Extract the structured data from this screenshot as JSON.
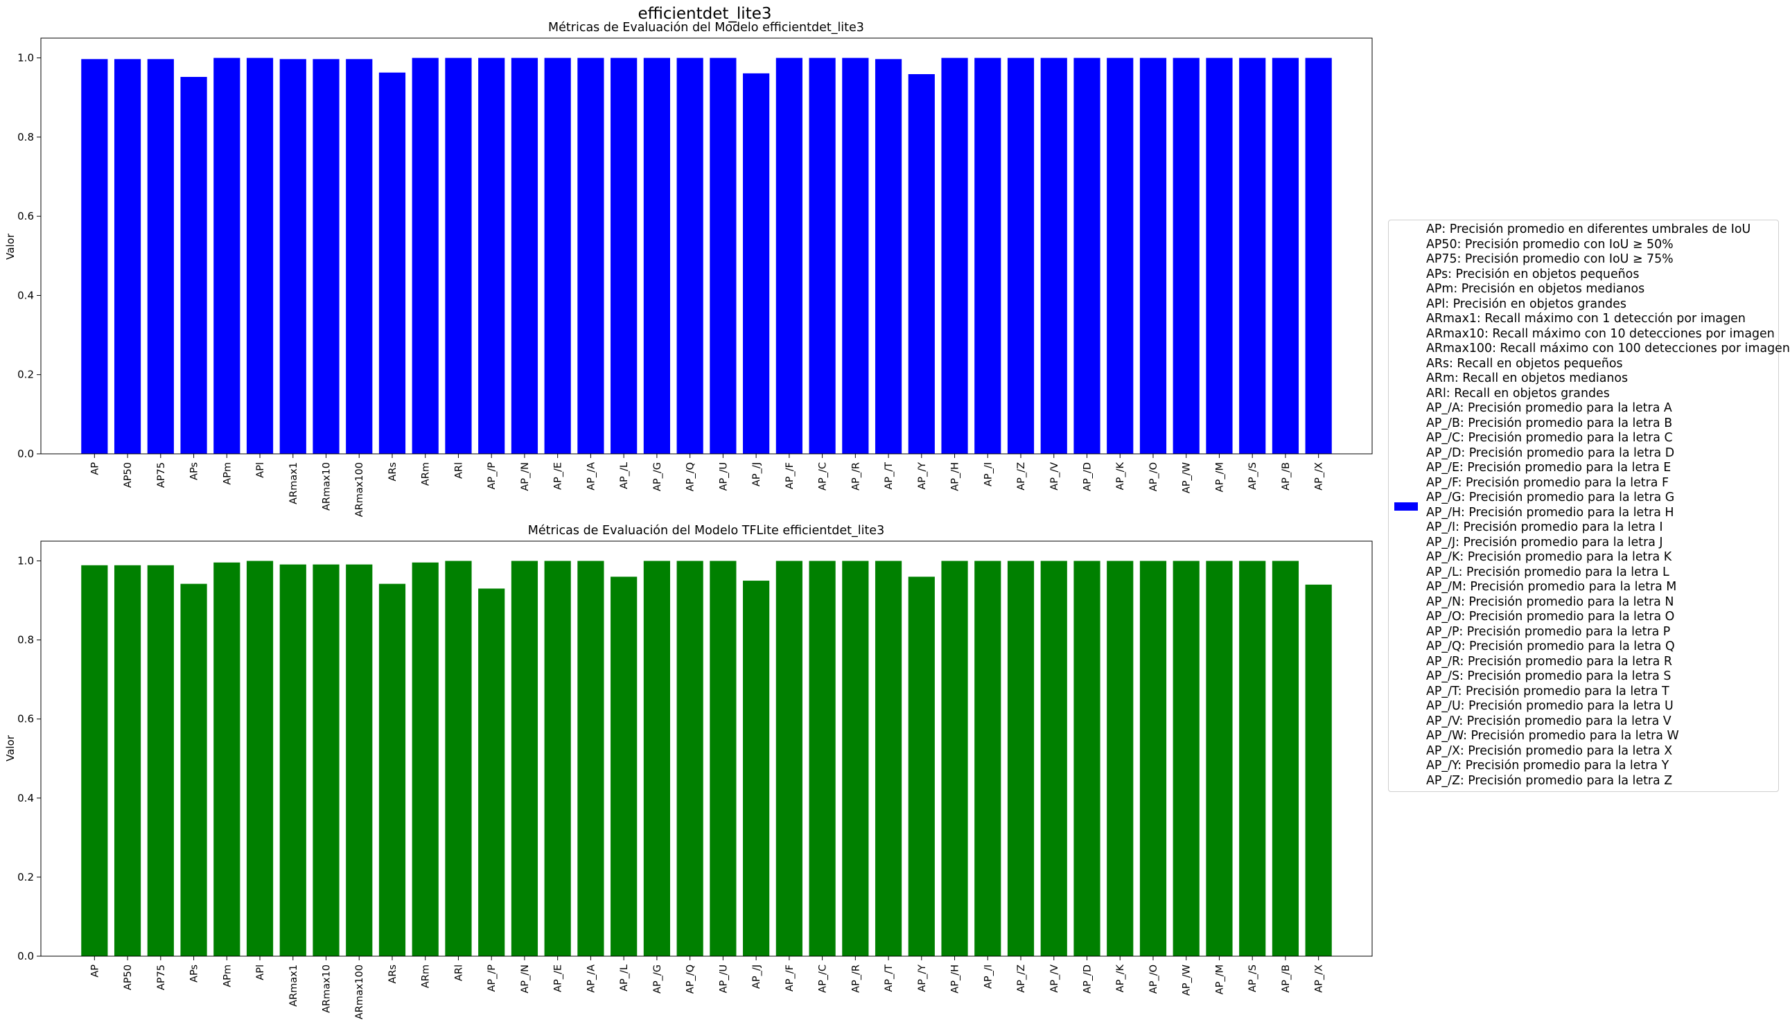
{
  "figure": {
    "suptitle": "efficientdet_lite3"
  },
  "chart_data": [
    {
      "type": "bar",
      "title": "Métricas de Evaluación del Modelo efficientdet_lite3",
      "xlabel": "",
      "ylabel": "Valor",
      "color": "#0000ff",
      "ylim": [
        0,
        1.05
      ],
      "yticks": [
        "0.0",
        "0.2",
        "0.4",
        "0.6",
        "0.8",
        "1.0"
      ],
      "grid": false,
      "categories": [
        "AP",
        "AP50",
        "AP75",
        "APs",
        "APm",
        "APl",
        "ARmax1",
        "ARmax10",
        "ARmax100",
        "ARs",
        "ARm",
        "ARl",
        "AP_/P",
        "AP_/N",
        "AP_/E",
        "AP_/A",
        "AP_/L",
        "AP_/G",
        "AP_/Q",
        "AP_/U",
        "AP_/J",
        "AP_/F",
        "AP_/C",
        "AP_/R",
        "AP_/T",
        "AP_/Y",
        "AP_/H",
        "AP_/I",
        "AP_/Z",
        "AP_/V",
        "AP_/D",
        "AP_/K",
        "AP_/O",
        "AP_/W",
        "AP_/M",
        "AP_/S",
        "AP_/B",
        "AP_/X"
      ],
      "values": [
        0.997,
        0.997,
        0.997,
        0.952,
        1.0,
        1.0,
        0.997,
        0.997,
        0.997,
        0.963,
        1.0,
        1.0,
        1.0,
        1.0,
        1.0,
        1.0,
        1.0,
        1.0,
        1.0,
        1.0,
        0.961,
        1.0,
        1.0,
        1.0,
        0.997,
        0.959,
        1.0,
        1.0,
        1.0,
        1.0,
        1.0,
        1.0,
        1.0,
        1.0,
        1.0,
        1.0,
        1.0,
        1.0
      ]
    },
    {
      "type": "bar",
      "title": "Métricas de Evaluación del Modelo TFLite efficientdet_lite3",
      "xlabel": "",
      "ylabel": "Valor",
      "color": "#008000",
      "ylim": [
        0,
        1.05
      ],
      "yticks": [
        "0.0",
        "0.2",
        "0.4",
        "0.6",
        "0.8",
        "1.0"
      ],
      "grid": false,
      "categories": [
        "AP",
        "AP50",
        "AP75",
        "APs",
        "APm",
        "APl",
        "ARmax1",
        "ARmax10",
        "ARmax100",
        "ARs",
        "ARm",
        "ARl",
        "AP_/P",
        "AP_/N",
        "AP_/E",
        "AP_/A",
        "AP_/L",
        "AP_/G",
        "AP_/Q",
        "AP_/U",
        "AP_/J",
        "AP_/F",
        "AP_/C",
        "AP_/R",
        "AP_/T",
        "AP_/Y",
        "AP_/H",
        "AP_/I",
        "AP_/Z",
        "AP_/V",
        "AP_/D",
        "AP_/K",
        "AP_/O",
        "AP_/W",
        "AP_/M",
        "AP_/S",
        "AP_/B",
        "AP_/X"
      ],
      "values": [
        0.989,
        0.989,
        0.989,
        0.942,
        0.996,
        1.0,
        0.991,
        0.991,
        0.991,
        0.942,
        0.996,
        1.0,
        0.93,
        1.0,
        1.0,
        1.0,
        0.96,
        1.0,
        1.0,
        1.0,
        0.95,
        1.0,
        1.0,
        1.0,
        1.0,
        0.96,
        1.0,
        1.0,
        1.0,
        1.0,
        1.0,
        1.0,
        1.0,
        1.0,
        1.0,
        1.0,
        1.0,
        0.94
      ]
    }
  ],
  "legend": {
    "placement": "center-right",
    "swatch_color": "#0000ff",
    "lines": [
      "AP: Precisión promedio en diferentes umbrales de IoU",
      "AP50: Precisión promedio con IoU ≥ 50%",
      "AP75: Precisión promedio con IoU ≥ 75%",
      "APs: Precisión en objetos pequeños",
      "APm: Precisión en objetos medianos",
      "APl: Precisión en objetos grandes",
      "ARmax1: Recall máximo con 1 detección por imagen",
      "ARmax10: Recall máximo con 10 detecciones por imagen",
      "ARmax100: Recall máximo con 100 detecciones por imagen",
      "ARs: Recall en objetos pequeños",
      "ARm: Recall en objetos medianos",
      "ARl: Recall en objetos grandes",
      "AP_/A: Precisión promedio para la letra A",
      "AP_/B: Precisión promedio para la letra B",
      "AP_/C: Precisión promedio para la letra C",
      "AP_/D: Precisión promedio para la letra D",
      "AP_/E: Precisión promedio para la letra E",
      "AP_/F: Precisión promedio para la letra F",
      "AP_/G: Precisión promedio para la letra G",
      "AP_/H: Precisión promedio para la letra H",
      "AP_/I: Precisión promedio para la letra I",
      "AP_/J: Precisión promedio para la letra J",
      "AP_/K: Precisión promedio para la letra K",
      "AP_/L: Precisión promedio para la letra L",
      "AP_/M: Precisión promedio para la letra M",
      "AP_/N: Precisión promedio para la letra N",
      "AP_/O: Precisión promedio para la letra O",
      "AP_/P: Precisión promedio para la letra P",
      "AP_/Q: Precisión promedio para la letra Q",
      "AP_/R: Precisión promedio para la letra R",
      "AP_/S: Precisión promedio para la letra S",
      "AP_/T: Precisión promedio para la letra T",
      "AP_/U: Precisión promedio para la letra U",
      "AP_/V: Precisión promedio para la letra V",
      "AP_/W: Precisión promedio para la letra W",
      "AP_/X: Precisión promedio para la letra X",
      "AP_/Y: Precisión promedio para la letra Y",
      "AP_/Z: Precisión promedio para la letra Z"
    ]
  }
}
